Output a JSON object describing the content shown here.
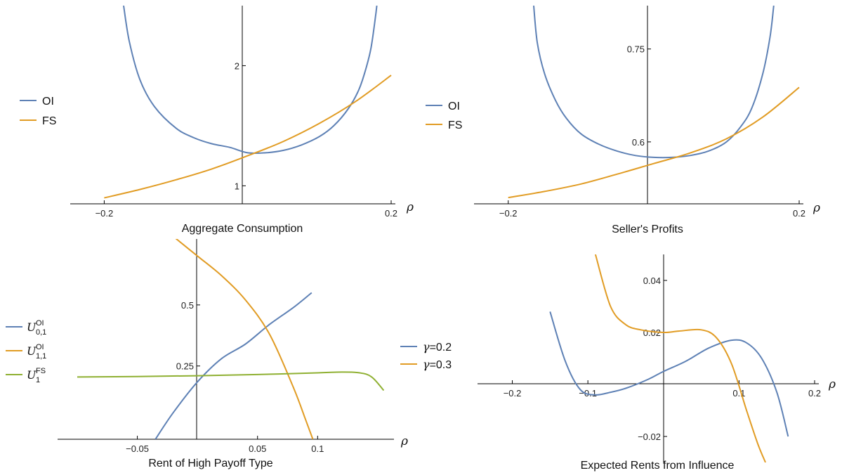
{
  "colors": {
    "blue": "#5E81B5",
    "orange": "#E19C24",
    "green": "#8FB032",
    "axis": "#000000"
  },
  "chart_data": [
    {
      "type": "line",
      "title": "Aggregate Consumption",
      "xlabel": "ρ",
      "xlim": [
        -0.22,
        0.2
      ],
      "ylim": [
        0.85,
        2.5
      ],
      "xticks": [
        {
          "v": -0.2,
          "label": "-0.2"
        },
        {
          "v": 0.2,
          "label": "0.2"
        }
      ],
      "yticks": [
        {
          "v": 1,
          "label": "1"
        },
        {
          "v": 2,
          "label": "2"
        }
      ],
      "legend": {
        "position": "left"
      },
      "series": [
        {
          "name": "OI",
          "color": "blue",
          "x": [
            -0.173,
            -0.165,
            -0.15,
            -0.13,
            -0.1,
            -0.075,
            -0.05,
            -0.025,
            0,
            0.025,
            0.05,
            0.075,
            0.1,
            0.12,
            0.14,
            0.155,
            0.165,
            0.172,
            0.178,
            0.18
          ],
          "y": [
            2.5,
            2.2,
            1.88,
            1.66,
            1.48,
            1.4,
            1.35,
            1.32,
            1.275,
            1.275,
            1.295,
            1.34,
            1.41,
            1.5,
            1.64,
            1.8,
            1.98,
            2.15,
            2.4,
            2.5
          ]
        },
        {
          "name": "FS",
          "color": "orange",
          "x": [
            -0.2,
            -0.15,
            -0.1,
            -0.05,
            0,
            0.05,
            0.1,
            0.15,
            0.2
          ],
          "y": [
            0.9,
            0.97,
            1.05,
            1.14,
            1.25,
            1.37,
            1.52,
            1.7,
            1.92
          ]
        }
      ]
    },
    {
      "type": "line",
      "title": "Seller's Profits",
      "xlabel": "ρ",
      "xlim": [
        -0.22,
        0.2
      ],
      "ylim": [
        0.5,
        0.82
      ],
      "xticks": [
        {
          "v": -0.2,
          "label": "-0.2"
        },
        {
          "v": 0.2,
          "label": "0.2"
        }
      ],
      "yticks": [
        {
          "v": 0.6,
          "label": "0.6"
        },
        {
          "v": 0.75,
          "label": "0.75"
        }
      ],
      "legend": {
        "position": "left"
      },
      "series": [
        {
          "name": "OI",
          "color": "blue",
          "x": [
            -0.165,
            -0.16,
            -0.15,
            -0.135,
            -0.12,
            -0.1,
            -0.075,
            -0.05,
            -0.025,
            0,
            0.025,
            0.05,
            0.075,
            0.1,
            0.12,
            0.135,
            0.15,
            0.16,
            0.165
          ],
          "y": [
            0.82,
            0.76,
            0.71,
            0.667,
            0.638,
            0.613,
            0.596,
            0.585,
            0.578,
            0.575,
            0.575,
            0.578,
            0.585,
            0.6,
            0.625,
            0.655,
            0.71,
            0.77,
            0.82
          ]
        },
        {
          "name": "FS",
          "color": "orange",
          "x": [
            -0.2,
            -0.15,
            -0.1,
            -0.05,
            0,
            0.05,
            0.1,
            0.15,
            0.2
          ],
          "y": [
            0.51,
            0.52,
            0.532,
            0.548,
            0.565,
            0.582,
            0.605,
            0.64,
            0.688
          ]
        }
      ]
    },
    {
      "type": "line",
      "title": "Rent of High Payoff Type",
      "xlabel": "ρ",
      "xlim": [
        -0.1,
        0.16
      ],
      "ylim": [
        -0.05,
        0.77
      ],
      "xticks": [
        {
          "v": -0.05,
          "label": "-0.05"
        },
        {
          "v": 0.05,
          "label": "0.05"
        },
        {
          "v": 0.1,
          "label": "0.1"
        }
      ],
      "yticks": [
        {
          "v": 0.25,
          "label": "0.25"
        },
        {
          "v": 0.5,
          "label": "0.5"
        }
      ],
      "legend": {
        "position": "left"
      },
      "series": [
        {
          "name": "U",
          "sub": "0,1",
          "sup": "OI",
          "color": "blue",
          "x": [
            -0.035,
            -0.02,
            0,
            0.02,
            0.04,
            0.06,
            0.08,
            0.095
          ],
          "y": [
            -0.05,
            0.06,
            0.185,
            0.28,
            0.34,
            0.42,
            0.49,
            0.55
          ]
        },
        {
          "name": "U",
          "sub": "1,1",
          "sup": "OI",
          "color": "orange",
          "x": [
            -0.02,
            0,
            0.02,
            0.04,
            0.06,
            0.08,
            0.09,
            0.096
          ],
          "y": [
            0.78,
            0.7,
            0.62,
            0.52,
            0.38,
            0.16,
            0.03,
            -0.05
          ]
        },
        {
          "name": "U",
          "sub": "1",
          "sup": "FS",
          "color": "green",
          "x": [
            -0.1,
            -0.05,
            0,
            0.05,
            0.1,
            0.12,
            0.135,
            0.145,
            0.155
          ],
          "y": [
            0.205,
            0.207,
            0.21,
            0.215,
            0.222,
            0.225,
            0.222,
            0.205,
            0.15
          ]
        }
      ]
    },
    {
      "type": "line",
      "title": "Expected Rents from Influence",
      "xlabel": "ρ",
      "xlim": [
        -0.22,
        0.2
      ],
      "ylim": [
        -0.03,
        0.05
      ],
      "xticks": [
        {
          "v": -0.2,
          "label": "-0.2"
        },
        {
          "v": -0.1,
          "label": "-0.1"
        },
        {
          "v": 0.1,
          "label": "0.1"
        },
        {
          "v": 0.2,
          "label": "0.2"
        }
      ],
      "yticks": [
        {
          "v": -0.02,
          "label": "-0.02"
        },
        {
          "v": 0.02,
          "label": "0.02"
        },
        {
          "v": 0.04,
          "label": "0.04"
        }
      ],
      "legend": {
        "position": "left"
      },
      "series": [
        {
          "name": "γ=0.2",
          "color": "blue",
          "x": [
            -0.15,
            -0.13,
            -0.11,
            -0.09,
            -0.07,
            -0.05,
            -0.02,
            0,
            0.03,
            0.06,
            0.09,
            0.11,
            0.13,
            0.15,
            0.165
          ],
          "y": [
            0.028,
            0.009,
            -0.002,
            -0.004,
            -0.003,
            -0.0015,
            0.002,
            0.005,
            0.009,
            0.014,
            0.017,
            0.016,
            0.01,
            -0.003,
            -0.02
          ]
        },
        {
          "name": "γ=0.3",
          "color": "orange",
          "x": [
            -0.09,
            -0.07,
            -0.05,
            -0.03,
            0,
            0.02,
            0.05,
            0.07,
            0.09,
            0.11,
            0.125,
            0.135
          ],
          "y": [
            0.05,
            0.03,
            0.023,
            0.021,
            0.02,
            0.0205,
            0.021,
            0.018,
            0.008,
            -0.01,
            -0.023,
            -0.03
          ]
        }
      ]
    }
  ]
}
